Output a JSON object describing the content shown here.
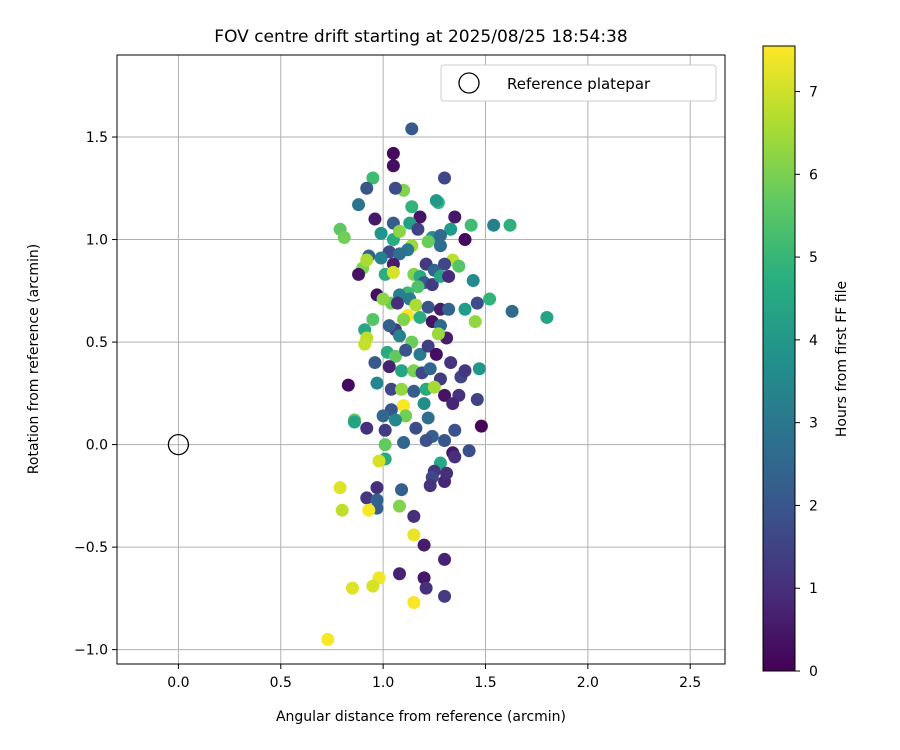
{
  "chart_data": {
    "type": "scatter",
    "title": "FOV centre drift starting at 2025/08/25 18:54:38",
    "xlabel": "Angular distance from reference (arcmin)",
    "ylabel": "Rotation from reference (arcmin)",
    "xlim": [
      -0.3,
      2.67
    ],
    "ylim": [
      -1.07,
      1.9
    ],
    "xticks": [
      0.0,
      0.5,
      1.0,
      1.5,
      2.0,
      2.5
    ],
    "xtick_labels": [
      "0.0",
      "0.5",
      "1.0",
      "1.5",
      "2.0",
      "2.5"
    ],
    "yticks": [
      -1.0,
      -0.5,
      0.0,
      0.5,
      1.0,
      1.5
    ],
    "ytick_labels": [
      "−1.0",
      "−0.5",
      "0.0",
      "0.5",
      "1.0",
      "1.5"
    ],
    "grid": true,
    "legend": {
      "placement": "top-right",
      "entries": [
        "Reference platepar"
      ]
    },
    "reference_point": {
      "x": 0.0,
      "y": 0.0
    },
    "colorbar": {
      "label": "Hours from first FF file",
      "range": [
        0,
        7.55
      ],
      "ticks": [
        0,
        1,
        2,
        3,
        4,
        5,
        6,
        7
      ],
      "colormap": "viridis"
    },
    "points": [
      [
        1.14,
        1.54,
        2.1
      ],
      [
        1.05,
        1.42,
        0.2
      ],
      [
        1.05,
        1.36,
        0.3
      ],
      [
        0.95,
        1.3,
        5.2
      ],
      [
        1.1,
        1.24,
        6.1
      ],
      [
        0.92,
        1.25,
        2.0
      ],
      [
        1.06,
        1.25,
        1.7
      ],
      [
        1.3,
        1.3,
        1.6
      ],
      [
        1.27,
        1.18,
        5.0
      ],
      [
        1.26,
        1.19,
        4.0
      ],
      [
        0.88,
        1.17,
        2.9
      ],
      [
        1.14,
        1.16,
        4.9
      ],
      [
        0.96,
        1.1,
        0.5
      ],
      [
        1.18,
        1.11,
        0.4
      ],
      [
        1.35,
        1.11,
        0.5
      ],
      [
        1.13,
        1.08,
        4.3
      ],
      [
        1.54,
        1.07,
        3.3
      ],
      [
        1.43,
        1.07,
        5.2
      ],
      [
        1.62,
        1.07,
        4.8
      ],
      [
        1.33,
        1.05,
        4.1
      ],
      [
        1.05,
        1.08,
        2.2
      ],
      [
        1.17,
        1.05,
        1.5
      ],
      [
        0.79,
        1.05,
        5.6
      ],
      [
        0.81,
        1.01,
        5.9
      ],
      [
        0.99,
        1.03,
        3.9
      ],
      [
        1.05,
        1.0,
        4.6
      ],
      [
        1.08,
        1.04,
        6.2
      ],
      [
        1.24,
        1.01,
        3.8
      ],
      [
        1.28,
        1.02,
        2.6
      ],
      [
        1.4,
        1.0,
        0.2
      ],
      [
        1.22,
        0.99,
        5.8
      ],
      [
        1.14,
        0.97,
        6.4
      ],
      [
        1.12,
        0.95,
        3.0
      ],
      [
        1.03,
        0.94,
        1.7
      ],
      [
        1.08,
        0.93,
        2.7
      ],
      [
        1.28,
        0.97,
        2.7
      ],
      [
        0.93,
        0.92,
        2.3
      ],
      [
        0.99,
        0.91,
        3.3
      ],
      [
        1.34,
        0.9,
        6.8
      ],
      [
        1.37,
        0.87,
        5.5
      ],
      [
        1.05,
        0.88,
        0.6
      ],
      [
        1.21,
        0.88,
        1.3
      ],
      [
        1.25,
        0.85,
        2.4
      ],
      [
        1.3,
        0.88,
        1.6
      ],
      [
        1.44,
        0.8,
        3.6
      ],
      [
        0.9,
        0.86,
        6.1
      ],
      [
        0.92,
        0.9,
        6.6
      ],
      [
        0.88,
        0.83,
        0.4
      ],
      [
        1.01,
        0.83,
        4.7
      ],
      [
        1.05,
        0.84,
        7.1
      ],
      [
        1.15,
        0.83,
        6.1
      ],
      [
        1.18,
        0.82,
        4.6
      ],
      [
        1.2,
        0.79,
        2.2
      ],
      [
        1.24,
        0.78,
        1.3
      ],
      [
        1.28,
        0.82,
        4.4
      ],
      [
        1.32,
        0.82,
        0.9
      ],
      [
        1.17,
        0.77,
        5.4
      ],
      [
        1.12,
        0.74,
        5.1
      ],
      [
        1.08,
        0.73,
        3.3
      ],
      [
        1.04,
        0.69,
        5.8
      ],
      [
        0.97,
        0.73,
        0.3
      ],
      [
        1.0,
        0.71,
        6.2
      ],
      [
        1.07,
        0.69,
        1.0
      ],
      [
        1.13,
        0.71,
        3.2
      ],
      [
        1.16,
        0.68,
        6.6
      ],
      [
        1.22,
        0.67,
        2.0
      ],
      [
        1.28,
        0.66,
        0.6
      ],
      [
        1.32,
        0.66,
        2.4
      ],
      [
        1.4,
        0.66,
        4.2
      ],
      [
        1.46,
        0.69,
        1.8
      ],
      [
        1.52,
        0.71,
        4.9
      ],
      [
        1.63,
        0.65,
        2.6
      ],
      [
        1.8,
        0.62,
        4.4
      ],
      [
        1.45,
        0.6,
        6.3
      ],
      [
        1.12,
        0.63,
        7.5
      ],
      [
        1.1,
        0.61,
        6.1
      ],
      [
        1.18,
        0.62,
        4.7
      ],
      [
        1.24,
        0.6,
        0.4
      ],
      [
        1.28,
        0.58,
        2.6
      ],
      [
        1.31,
        0.52,
        0.6
      ],
      [
        1.27,
        0.54,
        6.4
      ],
      [
        1.06,
        0.56,
        1.3
      ],
      [
        1.08,
        0.53,
        3.4
      ],
      [
        1.03,
        0.58,
        2.3
      ],
      [
        0.95,
        0.61,
        5.5
      ],
      [
        0.91,
        0.56,
        4.5
      ],
      [
        0.92,
        0.52,
        6.8
      ],
      [
        0.91,
        0.49,
        6.9
      ],
      [
        1.14,
        0.5,
        5.8
      ],
      [
        1.02,
        0.45,
        4.6
      ],
      [
        1.06,
        0.43,
        5.7
      ],
      [
        1.11,
        0.46,
        2.0
      ],
      [
        1.18,
        0.44,
        3.1
      ],
      [
        1.22,
        0.48,
        1.4
      ],
      [
        1.26,
        0.44,
        0.3
      ],
      [
        1.33,
        0.4,
        1.1
      ],
      [
        1.47,
        0.37,
        4.0
      ],
      [
        1.03,
        0.38,
        0.7
      ],
      [
        1.09,
        0.36,
        4.4
      ],
      [
        1.15,
        0.36,
        6.0
      ],
      [
        1.19,
        0.35,
        1.6
      ],
      [
        1.23,
        0.37,
        2.5
      ],
      [
        1.28,
        0.32,
        1.3
      ],
      [
        1.38,
        0.33,
        1.5
      ],
      [
        1.4,
        0.36,
        1.2
      ],
      [
        0.96,
        0.4,
        2.1
      ],
      [
        0.97,
        0.3,
        3.5
      ],
      [
        0.83,
        0.29,
        0.2
      ],
      [
        1.04,
        0.27,
        1.6
      ],
      [
        1.09,
        0.27,
        6.3
      ],
      [
        1.15,
        0.26,
        2.2
      ],
      [
        1.21,
        0.27,
        4.6
      ],
      [
        1.25,
        0.28,
        6.5
      ],
      [
        1.3,
        0.24,
        0.4
      ],
      [
        1.37,
        0.24,
        1.1
      ],
      [
        1.46,
        0.22,
        1.5
      ],
      [
        1.2,
        0.2,
        3.7
      ],
      [
        1.34,
        0.2,
        0.8
      ],
      [
        1.1,
        0.19,
        7.5
      ],
      [
        1.04,
        0.17,
        2.0
      ],
      [
        1.11,
        0.14,
        5.9
      ],
      [
        1.0,
        0.14,
        2.5
      ],
      [
        1.06,
        0.12,
        3.5
      ],
      [
        1.22,
        0.13,
        2.7
      ],
      [
        0.86,
        0.12,
        5.6
      ],
      [
        0.86,
        0.11,
        4.4
      ],
      [
        1.48,
        0.09,
        0.1
      ],
      [
        0.92,
        0.08,
        1.0
      ],
      [
        1.01,
        0.07,
        1.3
      ],
      [
        1.16,
        0.08,
        1.8
      ],
      [
        1.35,
        0.07,
        1.9
      ],
      [
        1.24,
        0.04,
        2.3
      ],
      [
        1.3,
        0.02,
        2.0
      ],
      [
        1.21,
        0.02,
        1.9
      ],
      [
        1.1,
        0.01,
        2.5
      ],
      [
        1.01,
        0.0,
        5.7
      ],
      [
        1.42,
        -0.03,
        1.8
      ],
      [
        1.34,
        -0.04,
        0.5
      ],
      [
        1.35,
        -0.06,
        1.0
      ],
      [
        1.01,
        -0.07,
        4.6
      ],
      [
        1.28,
        -0.09,
        4.5
      ],
      [
        0.98,
        -0.08,
        7.1
      ],
      [
        1.25,
        -0.13,
        1.2
      ],
      [
        1.24,
        -0.16,
        1.6
      ],
      [
        1.3,
        -0.18,
        0.8
      ],
      [
        1.31,
        -0.14,
        1.0
      ],
      [
        1.23,
        -0.2,
        1.1
      ],
      [
        0.79,
        -0.21,
        7.2
      ],
      [
        1.09,
        -0.22,
        2.3
      ],
      [
        0.97,
        -0.21,
        1.0
      ],
      [
        0.92,
        -0.26,
        1.2
      ],
      [
        0.97,
        -0.27,
        2.3
      ],
      [
        0.97,
        -0.31,
        2.3
      ],
      [
        0.8,
        -0.32,
        6.8
      ],
      [
        0.93,
        -0.32,
        7.5
      ],
      [
        1.08,
        -0.3,
        6.1
      ],
      [
        1.15,
        -0.35,
        1.0
      ],
      [
        1.15,
        -0.44,
        7.3
      ],
      [
        1.2,
        -0.49,
        0.6
      ],
      [
        1.3,
        -0.56,
        0.7
      ],
      [
        1.08,
        -0.63,
        0.7
      ],
      [
        0.98,
        -0.65,
        7.4
      ],
      [
        1.2,
        -0.65,
        0.5
      ],
      [
        0.95,
        -0.69,
        7.1
      ],
      [
        0.85,
        -0.7,
        7.2
      ],
      [
        1.21,
        -0.7,
        1.0
      ],
      [
        1.3,
        -0.74,
        1.3
      ],
      [
        1.15,
        -0.77,
        7.5
      ],
      [
        0.73,
        -0.95,
        7.5
      ]
    ]
  }
}
